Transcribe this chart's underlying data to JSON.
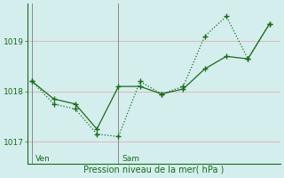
{
  "xlabel": "Pression niveau de la mer( hPa )",
  "bg_color": "#d4eeee",
  "grid_color": "#ddbcbc",
  "line_color": "#1a6b1a",
  "day_line_color": "#888888",
  "line1_x": [
    0,
    1,
    2,
    3,
    4,
    5,
    6,
    7,
    8,
    9,
    10,
    11
  ],
  "line1_y": [
    1018.2,
    1017.75,
    1017.65,
    1017.15,
    1017.1,
    1018.2,
    1017.95,
    1018.1,
    1019.1,
    1019.5,
    1018.65,
    1019.35
  ],
  "line2_x": [
    0,
    1,
    2,
    3,
    4,
    5,
    6,
    7,
    8,
    9,
    10,
    11
  ],
  "line2_y": [
    1018.2,
    1017.85,
    1017.75,
    1017.25,
    1018.1,
    1018.1,
    1017.95,
    1018.05,
    1018.45,
    1018.7,
    1018.65,
    1019.35
  ],
  "ylim": [
    1016.55,
    1019.75
  ],
  "yticks": [
    1017,
    1018,
    1019
  ],
  "xlim": [
    -0.2,
    11.5
  ],
  "ven_x": 0,
  "sam_x": 4,
  "day_names": [
    "Ven",
    "Sam"
  ],
  "day_line_x": [
    0,
    4
  ]
}
